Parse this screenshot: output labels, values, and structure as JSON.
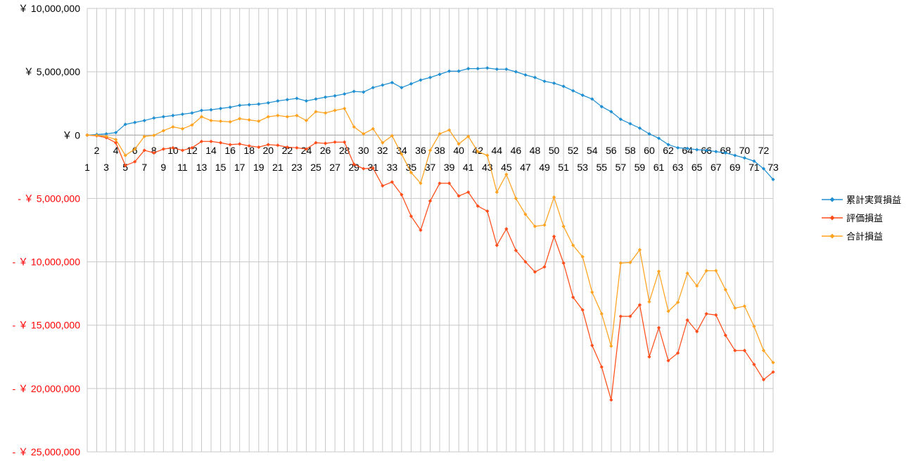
{
  "chart_data": {
    "type": "line",
    "title": "",
    "xlabel": "",
    "ylabel": "",
    "ylim": [
      -25000000,
      10000000
    ],
    "grid": true,
    "legend_position": "right",
    "y_ticks": [
      {
        "value": 10000000,
        "label": "￥ 10,000,000",
        "negative": false
      },
      {
        "value": 5000000,
        "label": "￥ 5,000,000",
        "negative": false
      },
      {
        "value": 0,
        "label": "￥ 0",
        "negative": false
      },
      {
        "value": -5000000,
        "label": "- ￥ 5,000,000",
        "negative": true
      },
      {
        "value": -10000000,
        "label": "- ￥ 10,000,000",
        "negative": true
      },
      {
        "value": -15000000,
        "label": "- ￥ 15,000,000",
        "negative": true
      },
      {
        "value": -20000000,
        "label": "- ￥ 20,000,000",
        "negative": true
      },
      {
        "value": -25000000,
        "label": "- ￥ 25,000,000",
        "negative": true
      }
    ],
    "x": [
      1,
      2,
      3,
      4,
      5,
      6,
      7,
      8,
      9,
      10,
      11,
      12,
      13,
      14,
      15,
      16,
      17,
      18,
      19,
      20,
      21,
      22,
      23,
      24,
      25,
      26,
      27,
      28,
      29,
      30,
      31,
      32,
      33,
      34,
      35,
      36,
      37,
      38,
      39,
      40,
      41,
      42,
      43,
      44,
      45,
      46,
      47,
      48,
      49,
      50,
      51,
      52,
      53,
      54,
      55,
      56,
      57,
      58,
      59,
      60,
      61,
      62,
      63,
      64,
      65,
      66,
      67,
      68,
      69,
      70,
      71,
      72,
      73
    ],
    "series": [
      {
        "name": "累計実質損益",
        "color": "#1f8fd1",
        "values": [
          0,
          50000,
          100000,
          200000,
          850000,
          1000000,
          1150000,
          1350000,
          1450000,
          1550000,
          1650000,
          1750000,
          1950000,
          2000000,
          2100000,
          2200000,
          2350000,
          2400000,
          2450000,
          2550000,
          2700000,
          2800000,
          2900000,
          2700000,
          2850000,
          3000000,
          3100000,
          3250000,
          3450000,
          3400000,
          3750000,
          3950000,
          4150000,
          3750000,
          4050000,
          4350000,
          4550000,
          4800000,
          5050000,
          5050000,
          5250000,
          5250000,
          5300000,
          5200000,
          5200000,
          5000000,
          4750000,
          4550000,
          4250000,
          4100000,
          3850000,
          3500000,
          3150000,
          2850000,
          2250000,
          1850000,
          1250000,
          900000,
          550000,
          100000,
          -250000,
          -750000,
          -1000000,
          -1050000,
          -1150000,
          -1200000,
          -1300000,
          -1400000,
          -1600000,
          -1800000,
          -2050000,
          -2650000,
          -3500000
        ]
      },
      {
        "name": "評価損益",
        "color": "#ff4d1a",
        "values": [
          0,
          -50000,
          -200000,
          -600000,
          -2400000,
          -2100000,
          -1200000,
          -1400000,
          -1100000,
          -1000000,
          -1200000,
          -1000000,
          -500000,
          -500000,
          -600000,
          -750000,
          -700000,
          -850000,
          -950000,
          -750000,
          -800000,
          -950000,
          -1000000,
          -1100000,
          -600000,
          -650000,
          -550000,
          -550000,
          -2300000,
          -2650000,
          -2600000,
          -4000000,
          -3700000,
          -4700000,
          -6400000,
          -7500000,
          -5200000,
          -3800000,
          -3800000,
          -4800000,
          -4500000,
          -5600000,
          -6000000,
          -8700000,
          -7400000,
          -9100000,
          -10000000,
          -10800000,
          -10400000,
          -8000000,
          -10100000,
          -12800000,
          -13800000,
          -16600000,
          -18300000,
          -20900000,
          -14300000,
          -14300000,
          -13400000,
          -17500000,
          -15200000,
          -17800000,
          -17200000,
          -14600000,
          -15500000,
          -14100000,
          -14200000,
          -15800000,
          -17000000,
          -17000000,
          -18100000,
          -19300000,
          -18700000
        ]
      },
      {
        "name": "合計損益",
        "color": "#ffa21f",
        "values": [
          0,
          -20000,
          -100000,
          -350000,
          -1600000,
          -1100000,
          -100000,
          -20000,
          350000,
          650000,
          500000,
          800000,
          1450000,
          1150000,
          1100000,
          1050000,
          1300000,
          1200000,
          1100000,
          1450000,
          1550000,
          1450000,
          1550000,
          1150000,
          1850000,
          1750000,
          1950000,
          2100000,
          650000,
          100000,
          500000,
          -600000,
          -50000,
          -1500000,
          -2950000,
          -3800000,
          -1200000,
          100000,
          400000,
          -700000,
          -100000,
          -1300000,
          -1600000,
          -4500000,
          -3100000,
          -5000000,
          -6250000,
          -7200000,
          -7100000,
          -4900000,
          -7200000,
          -8700000,
          -9600000,
          -12400000,
          -14100000,
          -16650000,
          -10100000,
          -10050000,
          -9050000,
          -13150000,
          -10750000,
          -13900000,
          -13200000,
          -10900000,
          -11900000,
          -10700000,
          -10700000,
          -12200000,
          -13650000,
          -13500000,
          -15100000,
          -17000000,
          -17950000
        ]
      }
    ]
  }
}
